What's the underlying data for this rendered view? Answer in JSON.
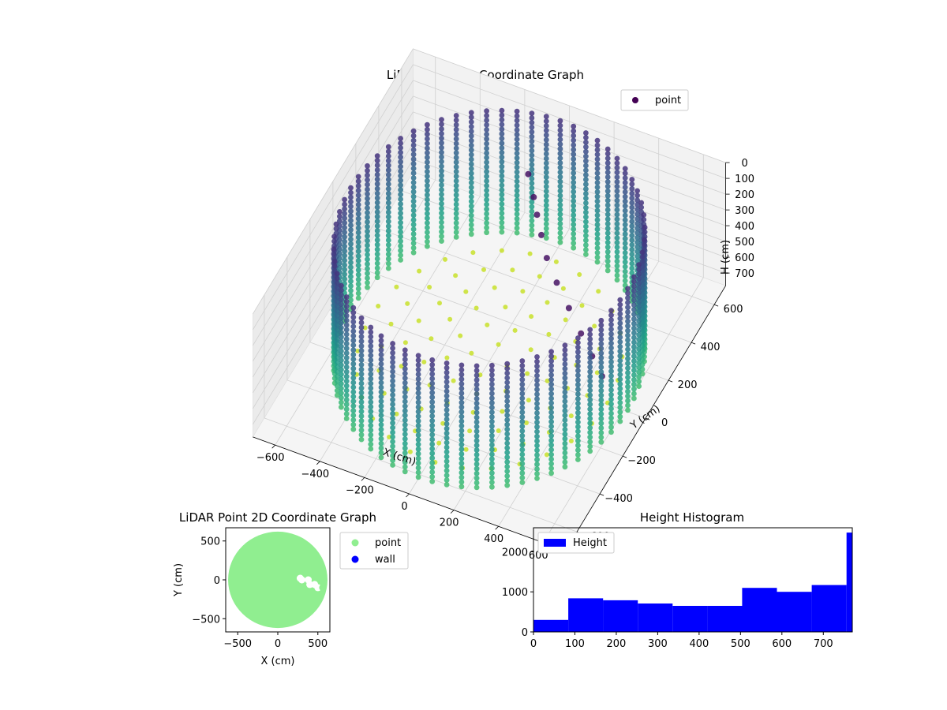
{
  "chart_data": [
    {
      "type": "scatter",
      "projection": "3d",
      "title": "LiDAR Point 3D Coordinate Graph",
      "xlabel": "X (cm)",
      "ylabel": "Y (cm)",
      "zlabel": "H (cm)",
      "xlim": [
        -700,
        700
      ],
      "ylim": [
        -700,
        700
      ],
      "zlim": [
        0,
        780
      ],
      "z_inverted": true,
      "xticks": [
        -600,
        -400,
        -200,
        0,
        200,
        400,
        600
      ],
      "yticks": [
        -600,
        -400,
        -200,
        0,
        200,
        400,
        600
      ],
      "zticks": [
        0,
        100,
        200,
        300,
        400,
        500,
        600,
        700
      ],
      "colormap": "viridis",
      "legend": {
        "placement": "upper-right",
        "entries": [
          {
            "name": "point",
            "color": "#440154"
          }
        ]
      },
      "series": [
        {
          "name": "point",
          "wall": {
            "shape": "cylinder",
            "radius": 620,
            "h_range": [
              0,
              770
            ]
          },
          "floor": {
            "shape": "disc",
            "radius": 620,
            "h": 770
          },
          "arm_points": [
            {
              "x": -20,
              "y": 380,
              "h": 60
            },
            {
              "x": 30,
              "y": 330,
              "h": 120
            },
            {
              "x": 60,
              "y": 300,
              "h": 180
            },
            {
              "x": 100,
              "y": 260,
              "h": 240
            },
            {
              "x": 150,
              "y": 210,
              "h": 300
            },
            {
              "x": 220,
              "y": 160,
              "h": 360
            },
            {
              "x": 300,
              "y": 110,
              "h": 420
            },
            {
              "x": 380,
              "y": 60,
              "h": 480
            },
            {
              "x": 450,
              "y": 20,
              "h": 540
            },
            {
              "x": 510,
              "y": -10,
              "h": 600
            }
          ]
        }
      ]
    },
    {
      "type": "scatter",
      "title": "LiDAR Point 2D Coordinate Graph",
      "xlabel": "X (cm)",
      "ylabel": "Y (cm)",
      "xlim": [
        -650,
        650
      ],
      "ylim": [
        -670,
        670
      ],
      "xticks": [
        -500,
        0,
        500
      ],
      "yticks": [
        -500,
        0,
        500
      ],
      "legend": {
        "placement": "outside-right",
        "entries": [
          {
            "name": "point",
            "color": "#90ee90"
          },
          {
            "name": "wall",
            "color": "#0000ff"
          }
        ]
      },
      "series": [
        {
          "name": "point",
          "color": "#90ee90",
          "shape": "disc",
          "center": [
            0,
            0
          ],
          "radius": 620,
          "gap_points": [
            [
              300,
              0
            ],
            [
              380,
              0
            ],
            [
              460,
              -60
            ],
            [
              500,
              -100
            ],
            [
              400,
              -60
            ],
            [
              280,
              20
            ]
          ]
        },
        {
          "name": "wall",
          "color": "#0000ff",
          "points": []
        }
      ]
    },
    {
      "type": "bar",
      "title": "Height Histogram",
      "xlabel": "",
      "ylabel": "",
      "xlim": [
        0,
        770
      ],
      "ylim": [
        0,
        2600
      ],
      "xticks": [
        0,
        100,
        200,
        300,
        400,
        500,
        600,
        700
      ],
      "yticks": [
        0,
        1000,
        2000
      ],
      "legend": {
        "placement": "upper-left",
        "entries": [
          {
            "name": "Height",
            "color": "#0000ff"
          }
        ]
      },
      "bin_edges": [
        0,
        84,
        168,
        252,
        336,
        420,
        504,
        588,
        672,
        756,
        770
      ],
      "values": [
        300,
        840,
        790,
        710,
        650,
        650,
        1100,
        1000,
        1170,
        2480
      ],
      "color": "#0000ff"
    }
  ]
}
